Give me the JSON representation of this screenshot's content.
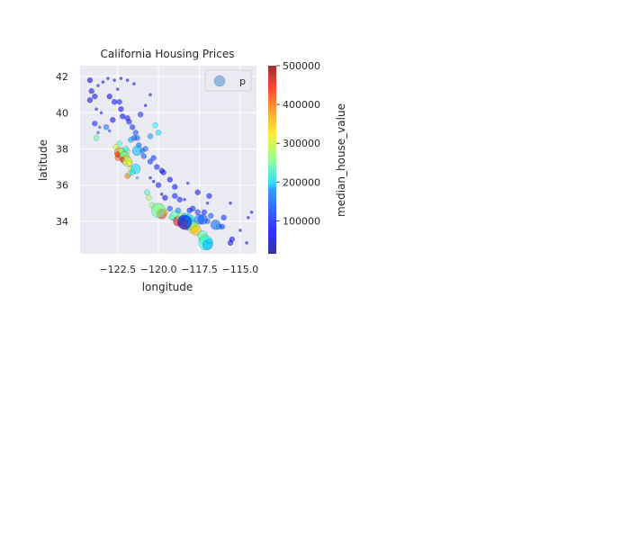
{
  "chart_data": {
    "type": "scatter",
    "title": "California Housing Prices",
    "xlabel": "longitude",
    "ylabel": "latitude",
    "xlim": [
      -124.8,
      -114.0
    ],
    "ylim": [
      32.2,
      42.6
    ],
    "x_ticks": [
      -122.5,
      -120.0,
      -117.5,
      -115.0
    ],
    "x_tick_labels": [
      "−122.5",
      "−120.0",
      "−117.5",
      "−115.0"
    ],
    "y_ticks": [
      34,
      36,
      38,
      40,
      42
    ],
    "y_tick_labels": [
      "34",
      "36",
      "38",
      "40",
      "42"
    ],
    "grid": true,
    "legend": {
      "placement": "top-right",
      "entries": [
        "p"
      ]
    },
    "colorbar": {
      "label": "median_house_value",
      "range": [
        15000,
        500001
      ],
      "ticks": [
        100000,
        200000,
        300000,
        400000,
        500000
      ],
      "tick_labels": [
        "100000",
        "200000",
        "300000",
        "400000",
        "500000"
      ],
      "colormap": "jet"
    },
    "points": [
      [
        -124.2,
        41.8,
        60000,
        1
      ],
      [
        -124.1,
        41.2,
        70000,
        1
      ],
      [
        -124.2,
        40.7,
        80000,
        1
      ],
      [
        -123.9,
        40.9,
        65000,
        1
      ],
      [
        -123.7,
        41.5,
        55000,
        0
      ],
      [
        -123.4,
        41.7,
        60000,
        0
      ],
      [
        -123.1,
        41.9,
        58000,
        0
      ],
      [
        -122.7,
        41.8,
        62000,
        0
      ],
      [
        -122.3,
        41.9,
        60000,
        0
      ],
      [
        -121.9,
        41.8,
        56000,
        0
      ],
      [
        -121.5,
        41.6,
        60000,
        0
      ],
      [
        -123.8,
        40.2,
        75000,
        0
      ],
      [
        -123.5,
        40.0,
        80000,
        0
      ],
      [
        -123.9,
        39.4,
        90000,
        1
      ],
      [
        -123.6,
        39.2,
        110000,
        0
      ],
      [
        -123.7,
        38.9,
        120000,
        0
      ],
      [
        -123.2,
        39.2,
        130000,
        1
      ],
      [
        -123.0,
        39.0,
        115000,
        0
      ],
      [
        -122.7,
        40.6,
        80000,
        1
      ],
      [
        -122.4,
        40.6,
        85000,
        1
      ],
      [
        -122.3,
        40.2,
        75000,
        1
      ],
      [
        -122.2,
        39.8,
        70000,
        1
      ],
      [
        -121.9,
        39.7,
        80000,
        1
      ],
      [
        -121.8,
        39.5,
        85000,
        1
      ],
      [
        -121.6,
        39.2,
        90000,
        1
      ],
      [
        -121.4,
        38.9,
        110000,
        1
      ],
      [
        -121.3,
        38.6,
        120000,
        1
      ],
      [
        -121.5,
        38.6,
        115000,
        1
      ],
      [
        -121.7,
        38.5,
        150000,
        1
      ],
      [
        -121.2,
        38.2,
        120000,
        1
      ],
      [
        -121.0,
        37.9,
        130000,
        1
      ],
      [
        -120.9,
        37.6,
        110000,
        1
      ],
      [
        -120.5,
        37.3,
        95000,
        1
      ],
      [
        -120.1,
        37.0,
        85000,
        1
      ],
      [
        -119.8,
        36.8,
        90000,
        1
      ],
      [
        -119.7,
        36.7,
        80000,
        1
      ],
      [
        -119.3,
        36.3,
        70000,
        1
      ],
      [
        -119.0,
        35.9,
        75000,
        1
      ],
      [
        -119.0,
        35.4,
        80000,
        1
      ],
      [
        -118.7,
        35.2,
        85000,
        1
      ],
      [
        -120.5,
        36.4,
        70000,
        0
      ],
      [
        -120.3,
        36.2,
        65000,
        0
      ],
      [
        -119.8,
        35.5,
        60000,
        0
      ],
      [
        -122.4,
        38.3,
        230000,
        1
      ],
      [
        -122.6,
        38.1,
        300000,
        1
      ],
      [
        -122.4,
        37.8,
        380000,
        2
      ],
      [
        -122.2,
        37.8,
        250000,
        2
      ],
      [
        -122.3,
        37.9,
        280000,
        1
      ],
      [
        -122.1,
        37.6,
        240000,
        2
      ],
      [
        -122.0,
        37.4,
        350000,
        2
      ],
      [
        -122.2,
        37.4,
        450000,
        1
      ],
      [
        -121.9,
        37.3,
        280000,
        2
      ],
      [
        -121.8,
        37.2,
        320000,
        1
      ],
      [
        -122.5,
        37.5,
        400000,
        1
      ],
      [
        -122.5,
        37.7,
        420000,
        1
      ],
      [
        -121.9,
        37.9,
        260000,
        1
      ],
      [
        -122.0,
        38.0,
        210000,
        1
      ],
      [
        -121.3,
        37.9,
        160000,
        2
      ],
      [
        -121.7,
        36.9,
        300000,
        1
      ],
      [
        -121.8,
        36.6,
        260000,
        1
      ],
      [
        -121.9,
        36.5,
        380000,
        1
      ],
      [
        -121.6,
        36.7,
        200000,
        1
      ],
      [
        -121.3,
        36.4,
        170000,
        0
      ],
      [
        -120.7,
        35.6,
        230000,
        1
      ],
      [
        -120.6,
        35.3,
        280000,
        1
      ],
      [
        -120.4,
        34.9,
        260000,
        1
      ],
      [
        -120.0,
        34.7,
        300000,
        2
      ],
      [
        -119.8,
        34.4,
        420000,
        2
      ],
      [
        -119.6,
        34.5,
        350000,
        1
      ],
      [
        -119.2,
        34.2,
        250000,
        1
      ],
      [
        -119.0,
        34.3,
        230000,
        2
      ],
      [
        -118.8,
        34.0,
        450000,
        2
      ],
      [
        -118.6,
        34.2,
        270000,
        2
      ],
      [
        -118.5,
        34.1,
        480000,
        1
      ],
      [
        -118.4,
        34.0,
        350000,
        2
      ],
      [
        -118.3,
        34.05,
        180000,
        3
      ],
      [
        -118.2,
        33.9,
        150000,
        3
      ],
      [
        -118.1,
        34.1,
        220000,
        2
      ],
      [
        -118.4,
        33.8,
        380000,
        2
      ],
      [
        -118.0,
        33.8,
        200000,
        2
      ],
      [
        -117.9,
        33.6,
        330000,
        2
      ],
      [
        -117.8,
        33.7,
        280000,
        2
      ],
      [
        -117.7,
        33.5,
        350000,
        2
      ],
      [
        -117.5,
        34.1,
        140000,
        2
      ],
      [
        -117.3,
        34.1,
        110000,
        2
      ],
      [
        -117.2,
        34.5,
        90000,
        1
      ],
      [
        -117.0,
        34.0,
        120000,
        1
      ],
      [
        -117.3,
        33.2,
        230000,
        2
      ],
      [
        -117.2,
        33.0,
        270000,
        2
      ],
      [
        -117.1,
        32.8,
        200000,
        3
      ],
      [
        -117.0,
        32.7,
        160000,
        2
      ],
      [
        -116.9,
        32.9,
        180000,
        1
      ],
      [
        -116.5,
        33.8,
        120000,
        2
      ],
      [
        -116.3,
        33.7,
        150000,
        1
      ],
      [
        -116.1,
        33.7,
        100000,
        1
      ],
      [
        -115.6,
        32.8,
        70000,
        1
      ],
      [
        -115.5,
        33.0,
        65000,
        1
      ],
      [
        -114.6,
        32.8,
        60000,
        0
      ],
      [
        -115.0,
        33.5,
        55000,
        0
      ],
      [
        -114.5,
        34.2,
        60000,
        0
      ],
      [
        -114.3,
        34.5,
        55000,
        0
      ],
      [
        -115.6,
        35.0,
        70000,
        0
      ],
      [
        -116.0,
        34.2,
        90000,
        1
      ],
      [
        -116.8,
        34.3,
        110000,
        1
      ],
      [
        -117.6,
        34.5,
        100000,
        1
      ],
      [
        -117.9,
        34.7,
        90000,
        1
      ],
      [
        -118.1,
        34.6,
        85000,
        1
      ],
      [
        -118.4,
        35.2,
        80000,
        0
      ],
      [
        -117.6,
        35.6,
        75000,
        1
      ],
      [
        -116.9,
        35.4,
        80000,
        1
      ],
      [
        -118.2,
        36.1,
        90000,
        0
      ],
      [
        -117.0,
        35.0,
        85000,
        0
      ],
      [
        -119.3,
        34.7,
        110000,
        1
      ],
      [
        -118.8,
        34.6,
        140000,
        1
      ],
      [
        -119.6,
        35.3,
        70000,
        1
      ],
      [
        -120.0,
        36.0,
        75000,
        1
      ],
      [
        -120.3,
        37.5,
        100000,
        1
      ],
      [
        -120.8,
        38.0,
        120000,
        1
      ],
      [
        -120.0,
        38.9,
        180000,
        1
      ],
      [
        -120.5,
        38.7,
        150000,
        1
      ],
      [
        -121.1,
        39.9,
        90000,
        1
      ],
      [
        -120.8,
        40.4,
        70000,
        0
      ],
      [
        -120.5,
        41.0,
        60000,
        0
      ],
      [
        -122.8,
        39.6,
        75000,
        1
      ],
      [
        -123.0,
        40.9,
        60000,
        1
      ],
      [
        -122.5,
        41.3,
        70000,
        0
      ],
      [
        -123.8,
        38.6,
        240000,
        1
      ],
      [
        -120.2,
        39.3,
        200000,
        1
      ],
      [
        -120.0,
        34.6,
        240000,
        3
      ],
      [
        -121.4,
        36.9,
        180000,
        2
      ],
      [
        -118.4,
        33.95,
        70000,
        3
      ]
    ]
  }
}
